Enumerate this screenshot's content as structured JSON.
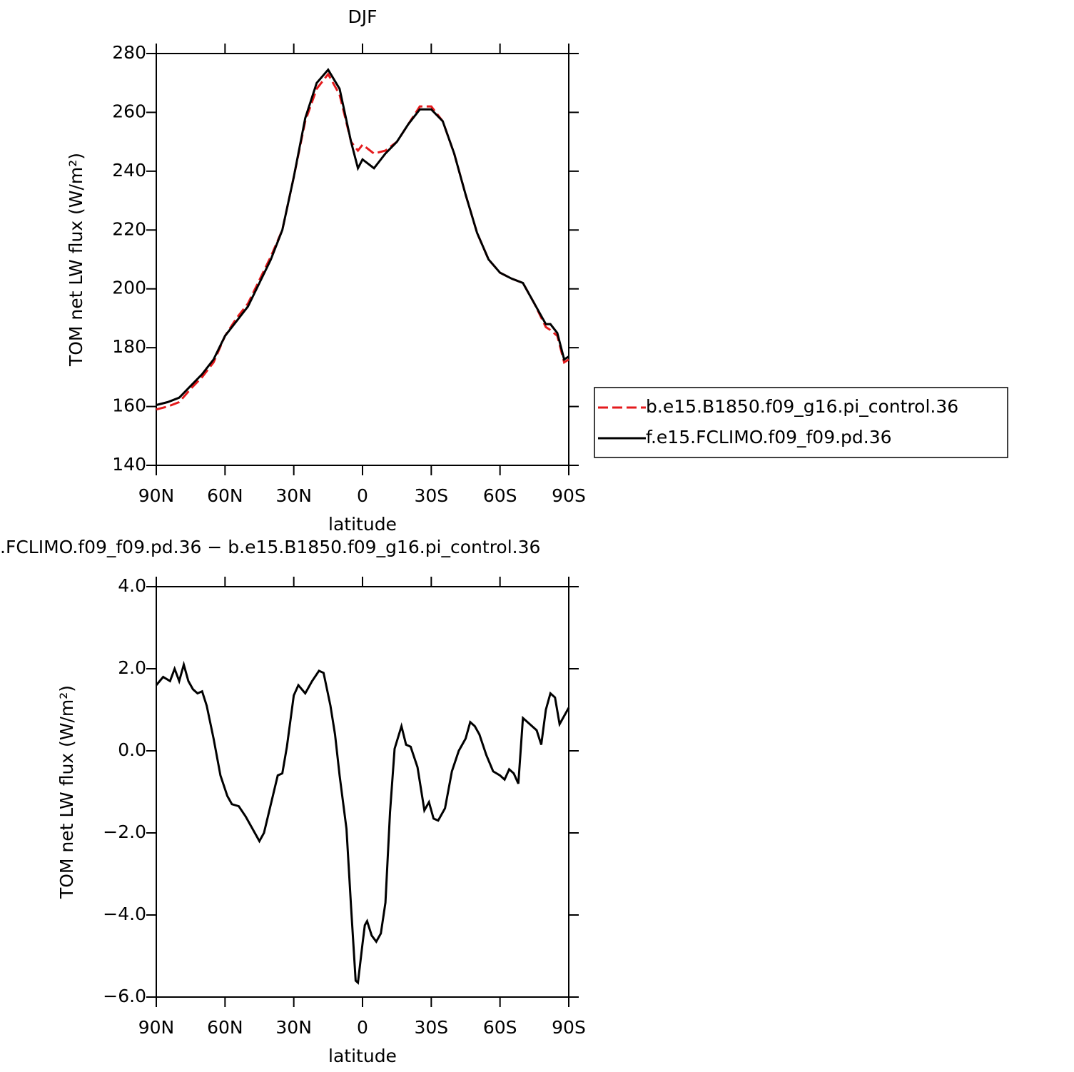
{
  "chart_data": [
    {
      "type": "line",
      "title": "DJF",
      "xlabel": "latitude",
      "ylabel": "TOM net LW flux (W/m²)",
      "x": [
        90,
        85,
        80,
        75,
        70,
        65,
        60,
        55,
        50,
        45,
        40,
        35,
        30,
        25,
        20,
        15,
        10,
        5,
        2,
        0,
        -5,
        -10,
        -15,
        -20,
        -25,
        -30,
        -35,
        -40,
        -45,
        -50,
        -55,
        -60,
        -65,
        -70,
        -75,
        -80,
        -82,
        -85,
        -88,
        -90
      ],
      "series": [
        {
          "name": "b.e15.B1850.f09_g16.pi_control.36",
          "color": "#e41a1c",
          "dash": true,
          "values": [
            159,
            160,
            161.5,
            166,
            170,
            175,
            184,
            190,
            195,
            203,
            211,
            220,
            238,
            257,
            268,
            273,
            266,
            250,
            247,
            249,
            246,
            247,
            250,
            256,
            262,
            262,
            257,
            246,
            232,
            219,
            210,
            205.5,
            203.5,
            202,
            195,
            187,
            186,
            184,
            175,
            176
          ]
        },
        {
          "name": "f.e15.FCLIMO.f09_f09.pd.36",
          "color": "#000000",
          "dash": false,
          "values": [
            160.5,
            161.5,
            163,
            167,
            171,
            176,
            184,
            189,
            194,
            202,
            210,
            220,
            238,
            258,
            270,
            274.5,
            268,
            250,
            241,
            244,
            241,
            246,
            250,
            256,
            261,
            261,
            257,
            246,
            232,
            219,
            210,
            205.5,
            203.5,
            202,
            195,
            188,
            188,
            185,
            176,
            177
          ]
        }
      ],
      "xlim": [
        90,
        -90
      ],
      "xticks": [
        {
          "value": 90,
          "label": "90N"
        },
        {
          "value": 60,
          "label": "60N"
        },
        {
          "value": 30,
          "label": "30N"
        },
        0,
        {
          "value": -30,
          "label": "30S"
        },
        {
          "value": -60,
          "label": "60S"
        },
        {
          "value": -90,
          "label": "90S"
        }
      ],
      "ylim": [
        140,
        280
      ],
      "yticks": [
        140,
        160,
        180,
        200,
        220,
        240,
        260,
        280
      ],
      "legend": "right"
    },
    {
      "type": "line",
      "title": ".FCLIMO.f09_f09.pd.36 − b.e15.B1850.f09_g16.pi_control.36",
      "xlabel": "latitude",
      "ylabel": "TOM net LW flux (W/m²)",
      "x": [
        90,
        87,
        84,
        82,
        80,
        78,
        76,
        74,
        72,
        70,
        68,
        65,
        62,
        59,
        57,
        54,
        51,
        48,
        45,
        43,
        40,
        37,
        35,
        33,
        30,
        28,
        25,
        22,
        19,
        17,
        14,
        12,
        10,
        7,
        5,
        3,
        2,
        0,
        -1,
        -2,
        -4,
        -6,
        -8,
        -10,
        -12,
        -14,
        -17,
        -19,
        -21,
        -24,
        -27,
        -29,
        -31,
        -33,
        -36,
        -39,
        -42,
        -45,
        -47,
        -49,
        -51,
        -54,
        -57,
        -60,
        -62,
        -64,
        -66,
        -68,
        -70,
        -72,
        -74,
        -76,
        -78,
        -80,
        -82,
        -84,
        -86,
        -88,
        -90
      ],
      "series": [
        {
          "color": "#000000",
          "dash": false,
          "values": [
            1.6,
            1.8,
            1.7,
            2.0,
            1.7,
            2.1,
            1.7,
            1.5,
            1.4,
            1.45,
            1.1,
            0.3,
            -0.6,
            -1.1,
            -1.3,
            -1.35,
            -1.6,
            -1.9,
            -2.2,
            -2.0,
            -1.3,
            -0.6,
            -0.55,
            0.1,
            1.35,
            1.6,
            1.4,
            1.7,
            1.95,
            1.9,
            1.1,
            0.4,
            -0.6,
            -1.9,
            -3.8,
            -5.6,
            -5.65,
            -4.7,
            -4.25,
            -4.15,
            -4.5,
            -4.65,
            -4.45,
            -3.7,
            -1.5,
            0.05,
            0.6,
            0.15,
            0.1,
            -0.4,
            -1.45,
            -1.25,
            -1.65,
            -1.7,
            -1.4,
            -0.5,
            0.0,
            0.3,
            0.7,
            0.6,
            0.4,
            -0.1,
            -0.5,
            -0.6,
            -0.7,
            -0.45,
            -0.55,
            -0.8,
            0.8,
            0.7,
            0.6,
            0.5,
            0.15,
            1.0,
            1.4,
            1.3,
            0.65,
            0.85,
            1.05
          ]
        }
      ],
      "xlim": [
        90,
        -90
      ],
      "xticks": [
        {
          "value": 90,
          "label": "90N"
        },
        {
          "value": 60,
          "label": "60N"
        },
        {
          "value": 30,
          "label": "30N"
        },
        0,
        {
          "value": -30,
          "label": "30S"
        },
        {
          "value": -60,
          "label": "60S"
        },
        {
          "value": -90,
          "label": "90S"
        }
      ],
      "ylim": [
        -6,
        4
      ],
      "yticks": [
        {
          "value": -6,
          "label": "−6.0"
        },
        {
          "value": -4,
          "label": "−4.0"
        },
        {
          "value": -2,
          "label": "−2.0"
        },
        {
          "value": 0,
          "label": "0.0"
        },
        {
          "value": 2,
          "label": "2.0"
        },
        {
          "value": 4,
          "label": "4.0"
        }
      ]
    }
  ]
}
